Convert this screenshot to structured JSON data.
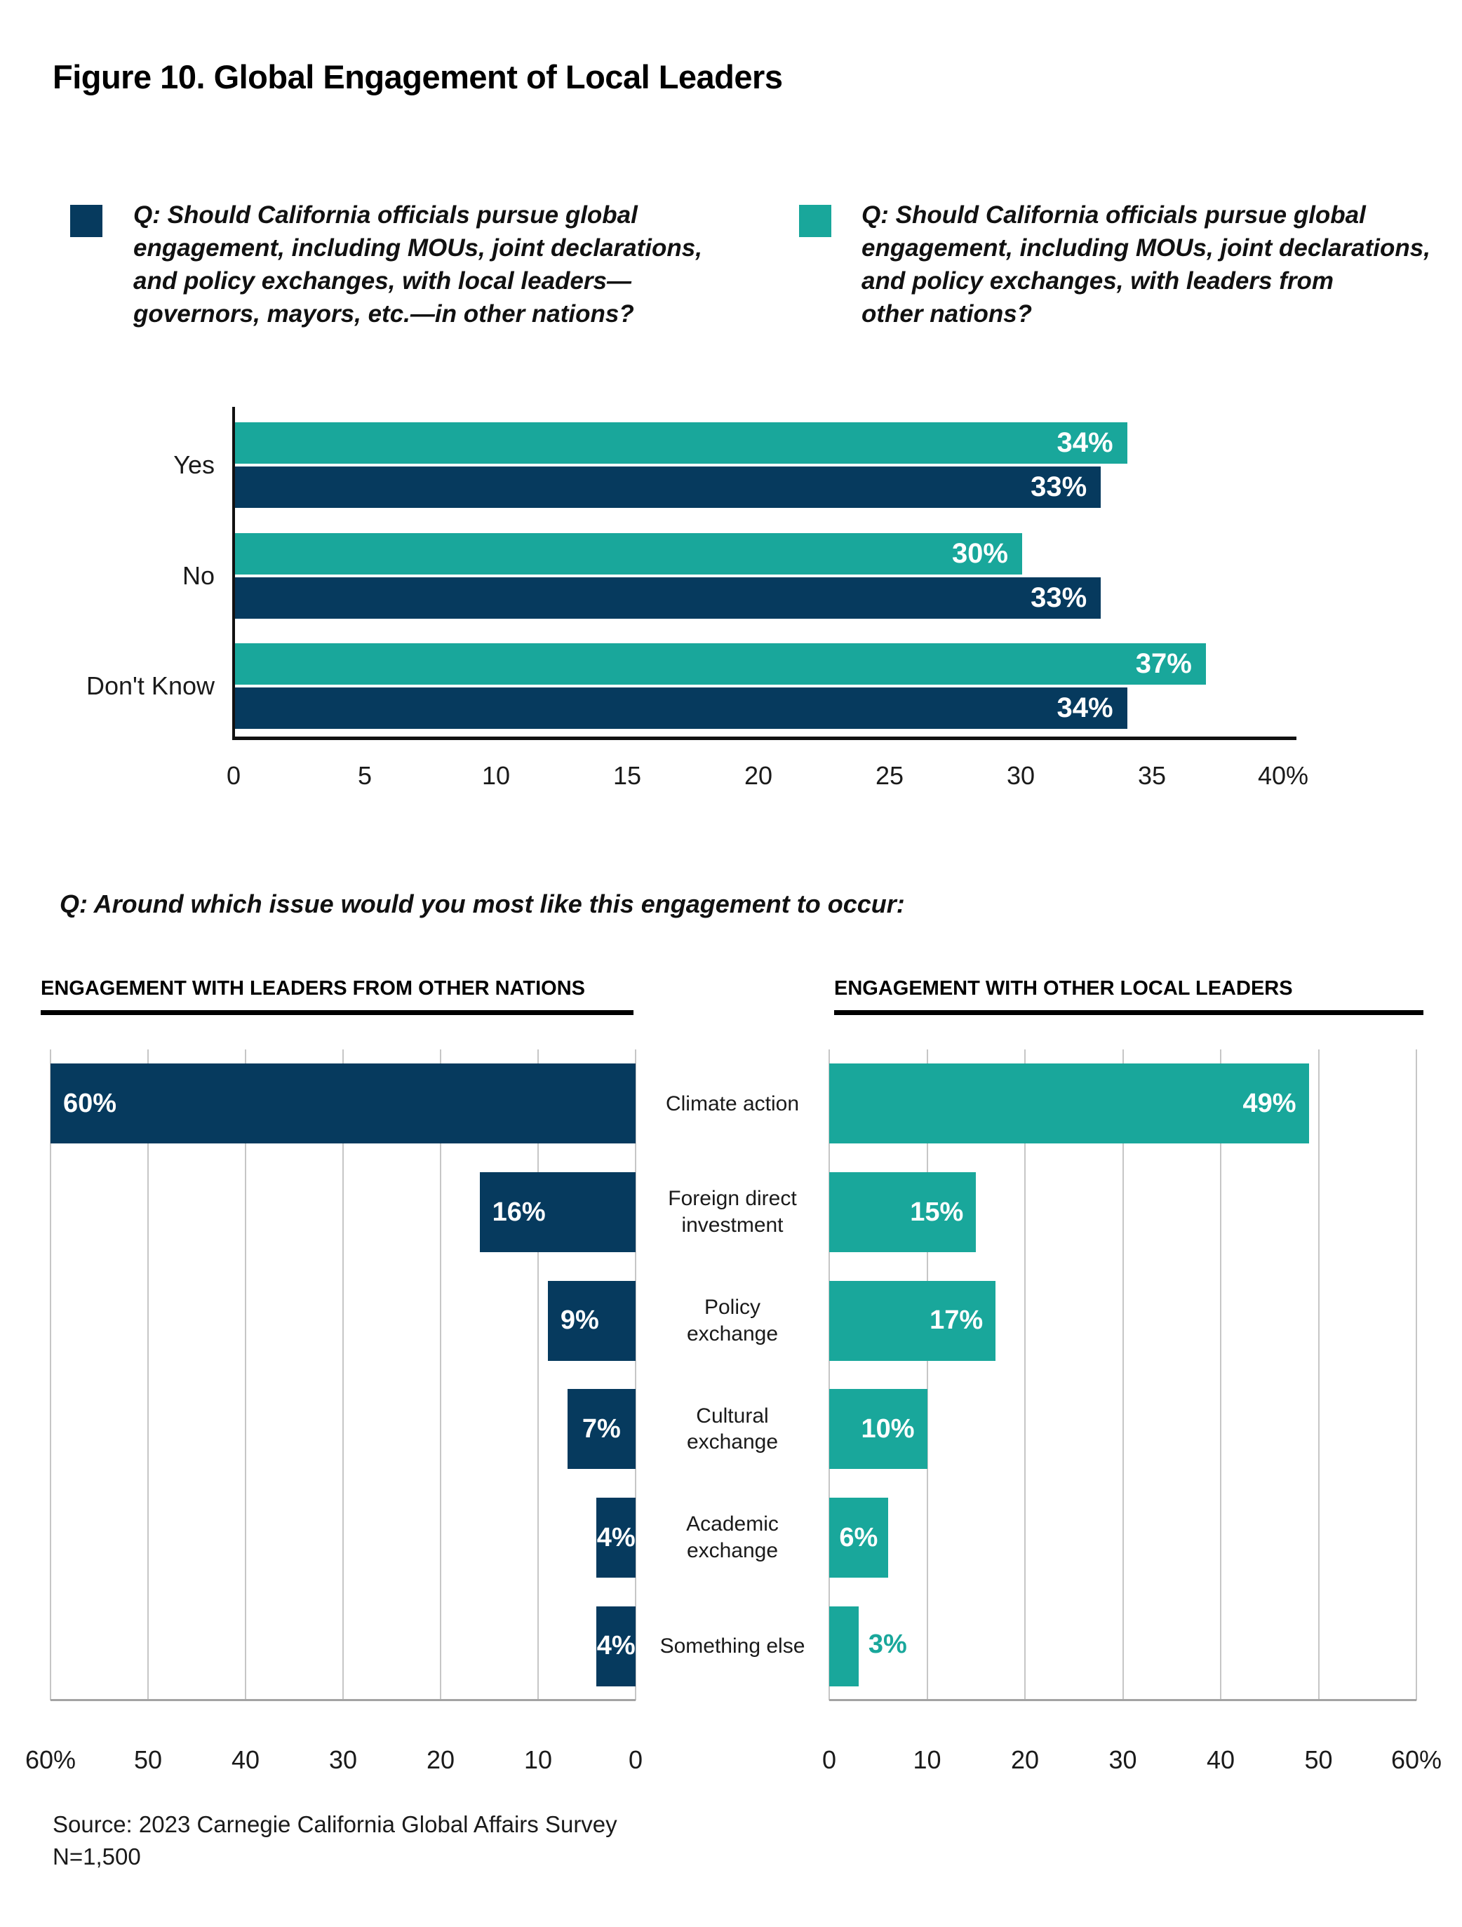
{
  "title": "Figure 10. Global Engagement of Local Leaders",
  "legend": {
    "items": [
      {
        "color": "#063A5E",
        "label": "Q: Should California officials pursue global\nengagement, including MOUs, joint declarations,\nand policy exchanges, with local leaders—\ngovernors, mayors, etc.—in other nations?"
      },
      {
        "color": "#19A79B",
        "label": "Q: Should California officials pursue global\nengagement, including MOUs, joint declarations,\nand policy exchanges, with leaders from\nother nations?"
      }
    ]
  },
  "question2": "Q: Around which issue would you most like this engagement to occur:",
  "bottom_labels_display": [
    "Climate action",
    "Foreign direct\ninvestment",
    "Policy\nexchange",
    "Cultural\nexchange",
    "Academic\nexchange",
    "Something else"
  ],
  "source_line1": "Source: 2023 Carnegie California Global Affairs Survey",
  "source_line2": "N=1,500",
  "chart_data": [
    {
      "type": "bar",
      "orientation": "horizontal-grouped",
      "categories": [
        "Yes",
        "No",
        "Don't Know"
      ],
      "series": [
        {
          "name": "With leaders from other nations",
          "color": "#19A79B",
          "position_in_group": 0,
          "values": [
            34,
            30,
            37
          ]
        },
        {
          "name": "With local leaders in other nations",
          "color": "#063A5E",
          "position_in_group": 1,
          "values": [
            33,
            33,
            34
          ]
        }
      ],
      "xlim": [
        0,
        40
      ],
      "ticks": [
        "0",
        "5",
        "10",
        "15",
        "20",
        "25",
        "30",
        "35",
        "40%"
      ],
      "value_suffix": "%",
      "grid": false,
      "legend_position": "top"
    },
    {
      "type": "bar",
      "title": "ENGAGEMENT WITH LEADERS FROM OTHER NATIONS",
      "orientation": "horizontal-reversed",
      "color": "#063A5E",
      "categories": [
        "Climate action",
        "Foreign direct investment",
        "Policy exchange",
        "Cultural exchange",
        "Academic exchange",
        "Something else"
      ],
      "categories_display": [
        "Climate action",
        "Foreign direct\ninvestment",
        "Policy\nexchange",
        "Cultural\nexchange",
        "Academic\nexchange",
        "Something else"
      ],
      "values": [
        60,
        16,
        9,
        7,
        4,
        4
      ],
      "xlim": [
        0,
        60
      ],
      "ticks": [
        "60%",
        "50",
        "40",
        "30",
        "20",
        "10",
        "0"
      ],
      "value_suffix": "%",
      "grid": true
    },
    {
      "type": "bar",
      "title": "ENGAGEMENT WITH OTHER LOCAL LEADERS",
      "orientation": "horizontal",
      "color": "#19A79B",
      "categories": [
        "Climate action",
        "Foreign direct investment",
        "Policy exchange",
        "Cultural exchange",
        "Academic exchange",
        "Something else"
      ],
      "values": [
        49,
        15,
        17,
        10,
        6,
        3
      ],
      "xlim": [
        0,
        60
      ],
      "ticks": [
        "0",
        "10",
        "20",
        "30",
        "40",
        "50",
        "60%"
      ],
      "value_suffix": "%",
      "grid": true
    }
  ]
}
